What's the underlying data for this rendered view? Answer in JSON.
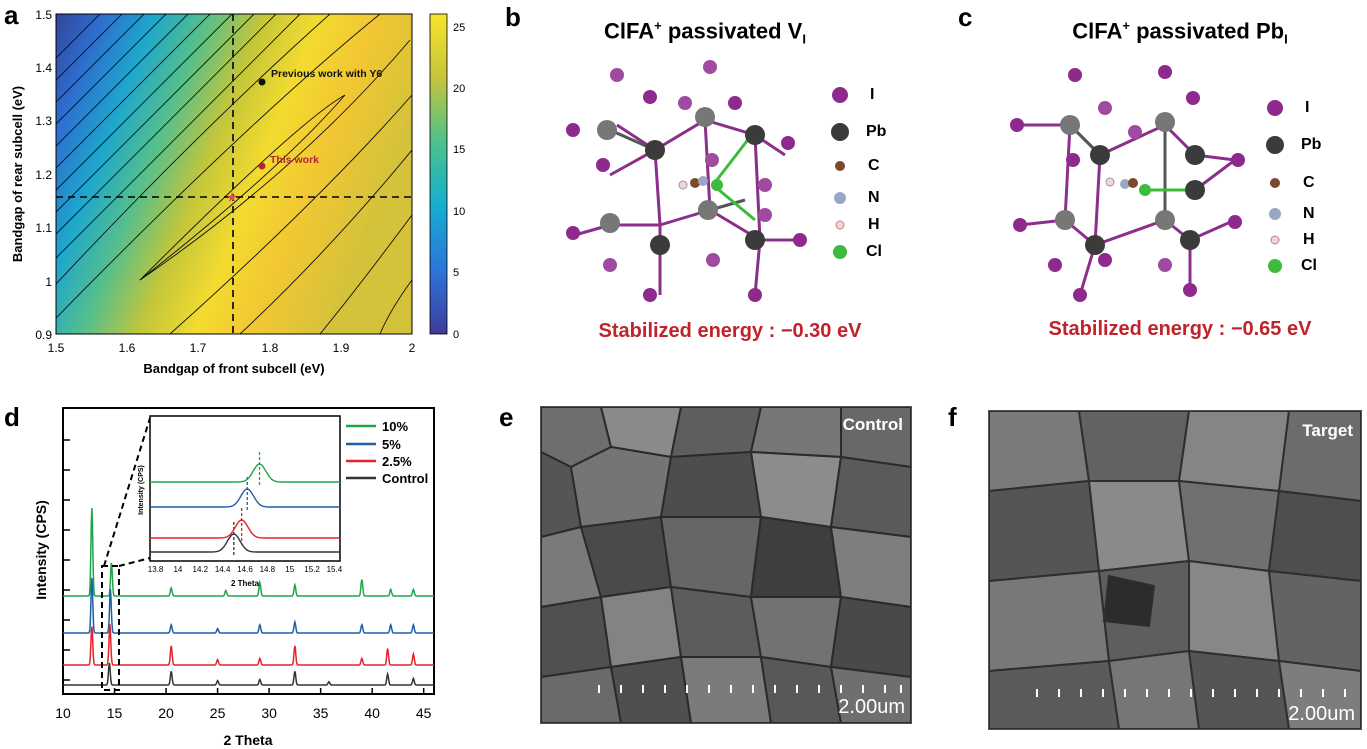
{
  "panels": {
    "a": {
      "label": "a"
    },
    "b": {
      "label": "b",
      "title": "ClFA",
      "title_sup": "+",
      "title_rest": " passivated V",
      "title_sub": "I",
      "energy": "Stabilized energy : −0.30 eV"
    },
    "c": {
      "label": "c",
      "title": "ClFA",
      "title_sup": "+",
      "title_rest": " passivated Pb",
      "title_sub": "I",
      "energy": "Stabilized energy : −0.65 eV"
    },
    "d": {
      "label": "d"
    },
    "e": {
      "label": "e",
      "tag": "Control",
      "scale": "2.00um"
    },
    "f": {
      "label": "f",
      "tag": "Target",
      "scale": "2.00um"
    }
  },
  "atom_legend": [
    {
      "symbol": "I",
      "color": "#8e2a8e"
    },
    {
      "symbol": "Pb",
      "color": "#3b3b3b"
    },
    {
      "symbol": "C",
      "color": "#7a4a2a"
    },
    {
      "symbol": "N",
      "color": "#9aa6c4"
    },
    {
      "symbol": "H",
      "color": "#f2d6d6"
    },
    {
      "symbol": "Cl",
      "color": "#3dbb3d"
    }
  ],
  "chart_data": [
    {
      "type": "heatmap",
      "panel": "a",
      "xlabel": "Bandgap of front subcell (eV)",
      "ylabel": "Bandgap of rear subcell (eV)",
      "xlim": [
        1.5,
        2.0
      ],
      "ylim": [
        0.9,
        1.5
      ],
      "xticks": [
        "1.5",
        "1.6",
        "1.7",
        "1.8",
        "1.9",
        "2"
      ],
      "yticks": [
        "0.9",
        "1",
        "1.1",
        "1.2",
        "1.3",
        "1.4",
        "1.5"
      ],
      "colorbar": {
        "range": [
          0,
          25
        ],
        "ticks": [
          "0",
          "5",
          "10",
          "15",
          "20",
          "25"
        ],
        "colors": [
          "#3d3d9f",
          "#2f7fd6",
          "#1fb3c8",
          "#5cc28a",
          "#c6c43a",
          "#f5e52a"
        ]
      },
      "reference_lines": {
        "x": 1.75,
        "y": 1.16
      },
      "annotations": [
        {
          "text": "Previous work with Y6",
          "x": 1.79,
          "y": 1.375,
          "color": "#000000"
        },
        {
          "text": "This work",
          "x": 1.79,
          "y": 1.215,
          "color": "#b3262e"
        }
      ],
      "star": {
        "x": 1.75,
        "y": 1.16,
        "color": "#d9534f"
      }
    },
    {
      "type": "line",
      "panel": "d",
      "xlabel": "2 Theta",
      "ylabel": "Intensity (CPS)",
      "xlim": [
        10,
        46
      ],
      "xticks": [
        "10",
        "15",
        "20",
        "25",
        "30",
        "35",
        "40",
        "45"
      ],
      "series": [
        {
          "name": "10%",
          "color": "#1fa54a",
          "offset": 3,
          "peaks": [
            [
              12.8,
              1.6
            ],
            [
              14.7,
              0.6
            ],
            [
              20.5,
              0.15
            ],
            [
              25.8,
              0.1
            ],
            [
              29.1,
              0.25
            ],
            [
              32.5,
              0.2
            ],
            [
              39.0,
              0.3
            ],
            [
              41.8,
              0.12
            ],
            [
              44.0,
              0.12
            ]
          ]
        },
        {
          "name": "5%",
          "color": "#1f5fa8",
          "offset": 2,
          "peaks": [
            [
              12.8,
              1.0
            ],
            [
              14.6,
              0.8
            ],
            [
              20.5,
              0.15
            ],
            [
              25.0,
              0.08
            ],
            [
              29.1,
              0.15
            ],
            [
              32.5,
              0.2
            ],
            [
              39.0,
              0.15
            ],
            [
              41.8,
              0.15
            ],
            [
              44.0,
              0.15
            ]
          ]
        },
        {
          "name": "2.5%",
          "color": "#e3242b",
          "offset": 1,
          "peaks": [
            [
              12.8,
              0.7
            ],
            [
              14.55,
              0.75
            ],
            [
              20.5,
              0.35
            ],
            [
              25.0,
              0.1
            ],
            [
              29.1,
              0.12
            ],
            [
              32.5,
              0.35
            ],
            [
              39.0,
              0.12
            ],
            [
              41.5,
              0.3
            ],
            [
              44.0,
              0.2
            ]
          ]
        },
        {
          "name": "Control",
          "color": "#333333",
          "offset": 0,
          "peaks": [
            [
              14.5,
              0.4
            ],
            [
              20.5,
              0.25
            ],
            [
              25.0,
              0.08
            ],
            [
              29.1,
              0.1
            ],
            [
              32.5,
              0.25
            ],
            [
              35.8,
              0.06
            ],
            [
              41.5,
              0.2
            ],
            [
              44.0,
              0.12
            ]
          ]
        }
      ],
      "inset": {
        "xlabel": "2 Theta",
        "ylabel": "Intensity (CPS)",
        "xlim": [
          13.75,
          15.45
        ],
        "xticks": [
          "13.8",
          "14",
          "14.2",
          "14.4",
          "14.6",
          "14.8",
          "15",
          "15.2",
          "15.4"
        ],
        "peak_positions": [
          14.73,
          14.62,
          14.57,
          14.5
        ]
      }
    }
  ]
}
